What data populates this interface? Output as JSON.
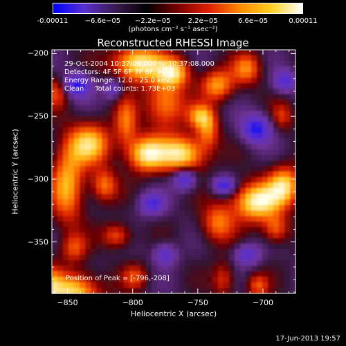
{
  "colorbar": {
    "ticks": [
      "-0.00011",
      "−6.6e−05",
      "−2.2e−05",
      "2.2e−05",
      "6.6e−05",
      "0.00011"
    ],
    "unit": "(photons cm⁻² s⁻¹ asec⁻²)",
    "colors": [
      "#0000ff",
      "#5a2fd0",
      "#3a1a50",
      "#000000",
      "#7a0000",
      "#e02000",
      "#ff8a00",
      "#ffd020",
      "#ffffff"
    ]
  },
  "chart_data": {
    "type": "heatmap",
    "title": "Reconstructed RHESSI Image",
    "xlabel": "Heliocentric X (arcsec)",
    "ylabel": "Heliocentric Y (arcsec)",
    "xlim": [
      -862,
      -675
    ],
    "ylim": [
      -391,
      -197
    ],
    "xticks": [
      -850,
      -800,
      -750,
      -700
    ],
    "yticks": [
      -200,
      -250,
      -300,
      -350
    ],
    "zlim": [
      -0.00011,
      0.00011
    ],
    "info_lines": [
      "29-Oct-2004 10:37:08.000 to 10:37:08.000",
      "Detectors: 4F 5F 6F 7F 8F, Att 0",
      "Energy Range: 12.0 - 25.0 keV",
      "Clean     Total counts: 1.73E+03"
    ],
    "peak_label": "Position of Peak = [-796,-208]",
    "peak": [
      -796,
      -208
    ],
    "blobs": [
      {
        "x": -796,
        "y": -208,
        "sx": 14,
        "sy": 10,
        "a": 1.0
      },
      {
        "x": -768,
        "y": -215,
        "sx": 9,
        "sy": 8,
        "a": 0.75
      },
      {
        "x": -735,
        "y": -225,
        "sx": 9,
        "sy": 9,
        "a": 0.7
      },
      {
        "x": -775,
        "y": -240,
        "sx": 11,
        "sy": 14,
        "a": 0.7
      },
      {
        "x": -790,
        "y": -280,
        "sx": 10,
        "sy": 10,
        "a": 0.9
      },
      {
        "x": -805,
        "y": -255,
        "sx": 6,
        "sy": 14,
        "a": 0.55
      },
      {
        "x": -833,
        "y": -272,
        "sx": 12,
        "sy": 12,
        "a": 0.8
      },
      {
        "x": -822,
        "y": -305,
        "sx": 7,
        "sy": 9,
        "a": 0.6
      },
      {
        "x": -850,
        "y": -305,
        "sx": 9,
        "sy": 22,
        "a": 0.75
      },
      {
        "x": -762,
        "y": -280,
        "sx": 13,
        "sy": 10,
        "a": 0.95
      },
      {
        "x": -742,
        "y": -262,
        "sx": 6,
        "sy": 10,
        "a": 0.55
      },
      {
        "x": -748,
        "y": -250,
        "sx": 7,
        "sy": 7,
        "a": 0.6
      },
      {
        "x": -705,
        "y": -318,
        "sx": 13,
        "sy": 11,
        "a": 1.0
      },
      {
        "x": -683,
        "y": -305,
        "sx": 9,
        "sy": 11,
        "a": 0.8
      },
      {
        "x": -735,
        "y": -335,
        "sx": 9,
        "sy": 11,
        "a": 0.6
      },
      {
        "x": -812,
        "y": -345,
        "sx": 8,
        "sy": 7,
        "a": 0.55
      },
      {
        "x": -845,
        "y": -390,
        "sx": 14,
        "sy": 11,
        "a": 0.9
      },
      {
        "x": -704,
        "y": -385,
        "sx": 6,
        "sy": 7,
        "a": 0.5
      },
      {
        "x": -730,
        "y": -380,
        "sx": 6,
        "sy": 10,
        "a": 0.45
      },
      {
        "x": -865,
        "y": -385,
        "sx": 7,
        "sy": 12,
        "a": 0.5
      },
      {
        "x": -858,
        "y": -230,
        "sx": 7,
        "sy": 9,
        "a": 0.5
      },
      {
        "x": -712,
        "y": -212,
        "sx": 8,
        "sy": 9,
        "a": 0.6
      },
      {
        "x": -845,
        "y": -355,
        "sx": 7,
        "sy": 8,
        "a": 0.45
      },
      {
        "x": -685,
        "y": -250,
        "sx": 6,
        "sy": 8,
        "a": 0.4
      },
      {
        "x": -798,
        "y": -378,
        "sx": 7,
        "sy": 7,
        "a": 0.45
      },
      {
        "x": -690,
        "y": -340,
        "sx": 7,
        "sy": 8,
        "a": 0.55
      }
    ],
    "neg_blobs": [
      {
        "x": -843,
        "y": -225,
        "sx": 8,
        "sy": 7,
        "a": 0.8
      },
      {
        "x": -760,
        "y": -300,
        "sx": 6,
        "sy": 6,
        "a": 0.7
      },
      {
        "x": -705,
        "y": -260,
        "sx": 8,
        "sy": 8,
        "a": 0.8
      },
      {
        "x": -683,
        "y": -222,
        "sx": 6,
        "sy": 6,
        "a": 0.6
      },
      {
        "x": -730,
        "y": -305,
        "sx": 6,
        "sy": 5,
        "a": 0.7
      },
      {
        "x": -785,
        "y": -320,
        "sx": 7,
        "sy": 6,
        "a": 0.6
      },
      {
        "x": -712,
        "y": -360,
        "sx": 7,
        "sy": 6,
        "a": 0.55
      },
      {
        "x": -775,
        "y": -360,
        "sx": 6,
        "sy": 6,
        "a": 0.55
      },
      {
        "x": -815,
        "y": -228,
        "sx": 5,
        "sy": 6,
        "a": 0.5
      }
    ]
  },
  "timestamp": "17-Jun-2013 19:57"
}
